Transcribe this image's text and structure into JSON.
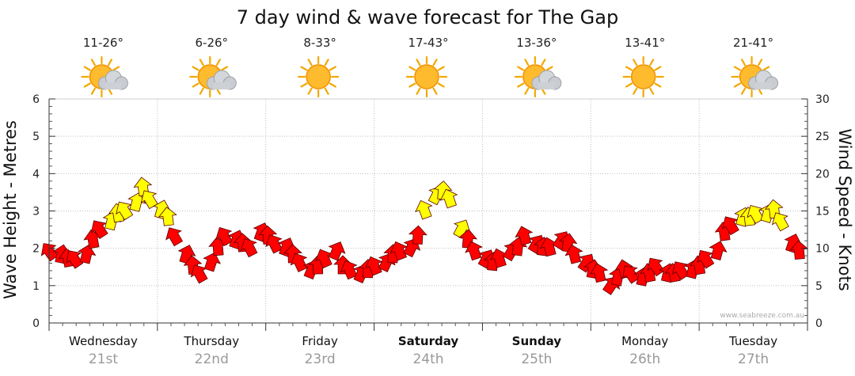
{
  "chart_data": {
    "type": "line",
    "title": "7 day wind & wave forecast for The Gap",
    "ylabel": "Wave Height - Metres",
    "ylabel_right": "Wind Speed - Knots",
    "ylim": [
      0,
      6
    ],
    "ylim_right": [
      0,
      30
    ],
    "yticks": [
      "0",
      "1",
      "2",
      "3",
      "4",
      "5",
      "6"
    ],
    "yticks_right": [
      "0",
      "5",
      "10",
      "15",
      "20",
      "25",
      "30"
    ],
    "days": [
      {
        "name": "Wednesday",
        "date": "21st",
        "temp": "11-26°",
        "icon": "sun-cloud-icon",
        "bold": false
      },
      {
        "name": "Thursday",
        "date": "22nd",
        "temp": "6-26°",
        "icon": "sun-cloud-icon",
        "bold": false
      },
      {
        "name": "Friday",
        "date": "23rd",
        "temp": "8-33°",
        "icon": "sun-icon",
        "bold": false
      },
      {
        "name": "Saturday",
        "date": "24th",
        "temp": "17-43°",
        "icon": "sun-icon",
        "bold": true
      },
      {
        "name": "Sunday",
        "date": "25th",
        "temp": "13-36°",
        "icon": "sun-cloud-icon",
        "bold": true
      },
      {
        "name": "Monday",
        "date": "26th",
        "temp": "13-41°",
        "icon": "sun-icon",
        "bold": false
      },
      {
        "name": "Tuesday",
        "date": "27th",
        "temp": "21-41°",
        "icon": "sun-cloud-icon",
        "bold": false
      }
    ],
    "series": [
      {
        "values": [
          1.8,
          1.7,
          1.6,
          1.6,
          1.7,
          2.1,
          2.4,
          2.6,
          2.8,
          2.9,
          3.1,
          3.5,
          3.2,
          2.9,
          2.7,
          2.2,
          1.7,
          1.4,
          1.2,
          1.5,
          1.9,
          2.2,
          2.1,
          2.0,
          1.9,
          2.3,
          2.2,
          2.0,
          1.9,
          1.7,
          1.5,
          1.3,
          1.4,
          1.6,
          1.8,
          1.4,
          1.3,
          1.2,
          1.3,
          1.4,
          1.5,
          1.7,
          1.8,
          1.9,
          2.2,
          2.9,
          3.3,
          3.4,
          3.2,
          2.4,
          2.1,
          1.8,
          1.6,
          1.5,
          1.6,
          1.8,
          1.9,
          2.2,
          2.0,
          1.9,
          1.9,
          2.1,
          2.0,
          1.7,
          1.5,
          1.3,
          1.2,
          0.9,
          1.1,
          1.3,
          1.2,
          1.1,
          1.2,
          1.4,
          1.2,
          1.2,
          1.3,
          1.3,
          1.4,
          1.6,
          1.8,
          2.3,
          2.5,
          2.7,
          2.7,
          2.8,
          2.8,
          2.9,
          2.6,
          2.0,
          1.8
        ]
      },
      {
        "values": [
          8,
          7,
          6,
          6,
          6,
          10,
          12,
          13,
          14,
          14,
          15,
          17,
          15,
          14,
          13,
          11,
          8,
          7,
          6,
          7,
          10,
          11,
          10,
          10,
          9,
          11,
          11,
          10,
          9,
          8,
          7,
          6,
          7,
          8,
          9,
          7,
          6,
          6,
          6,
          6,
          7,
          8,
          8,
          9,
          11,
          14,
          17,
          17,
          16,
          13,
          10,
          8,
          8,
          8,
          8,
          9,
          10,
          11,
          10,
          10,
          10,
          11,
          10,
          9,
          8,
          7,
          6,
          4,
          5,
          6,
          6,
          5,
          6,
          7,
          6,
          6,
          6,
          6,
          7,
          8,
          9,
          11,
          12,
          13,
          13,
          14,
          14,
          15,
          13,
          10,
          9
        ]
      }
    ],
    "credit": "www.seabreeze.com.au"
  }
}
